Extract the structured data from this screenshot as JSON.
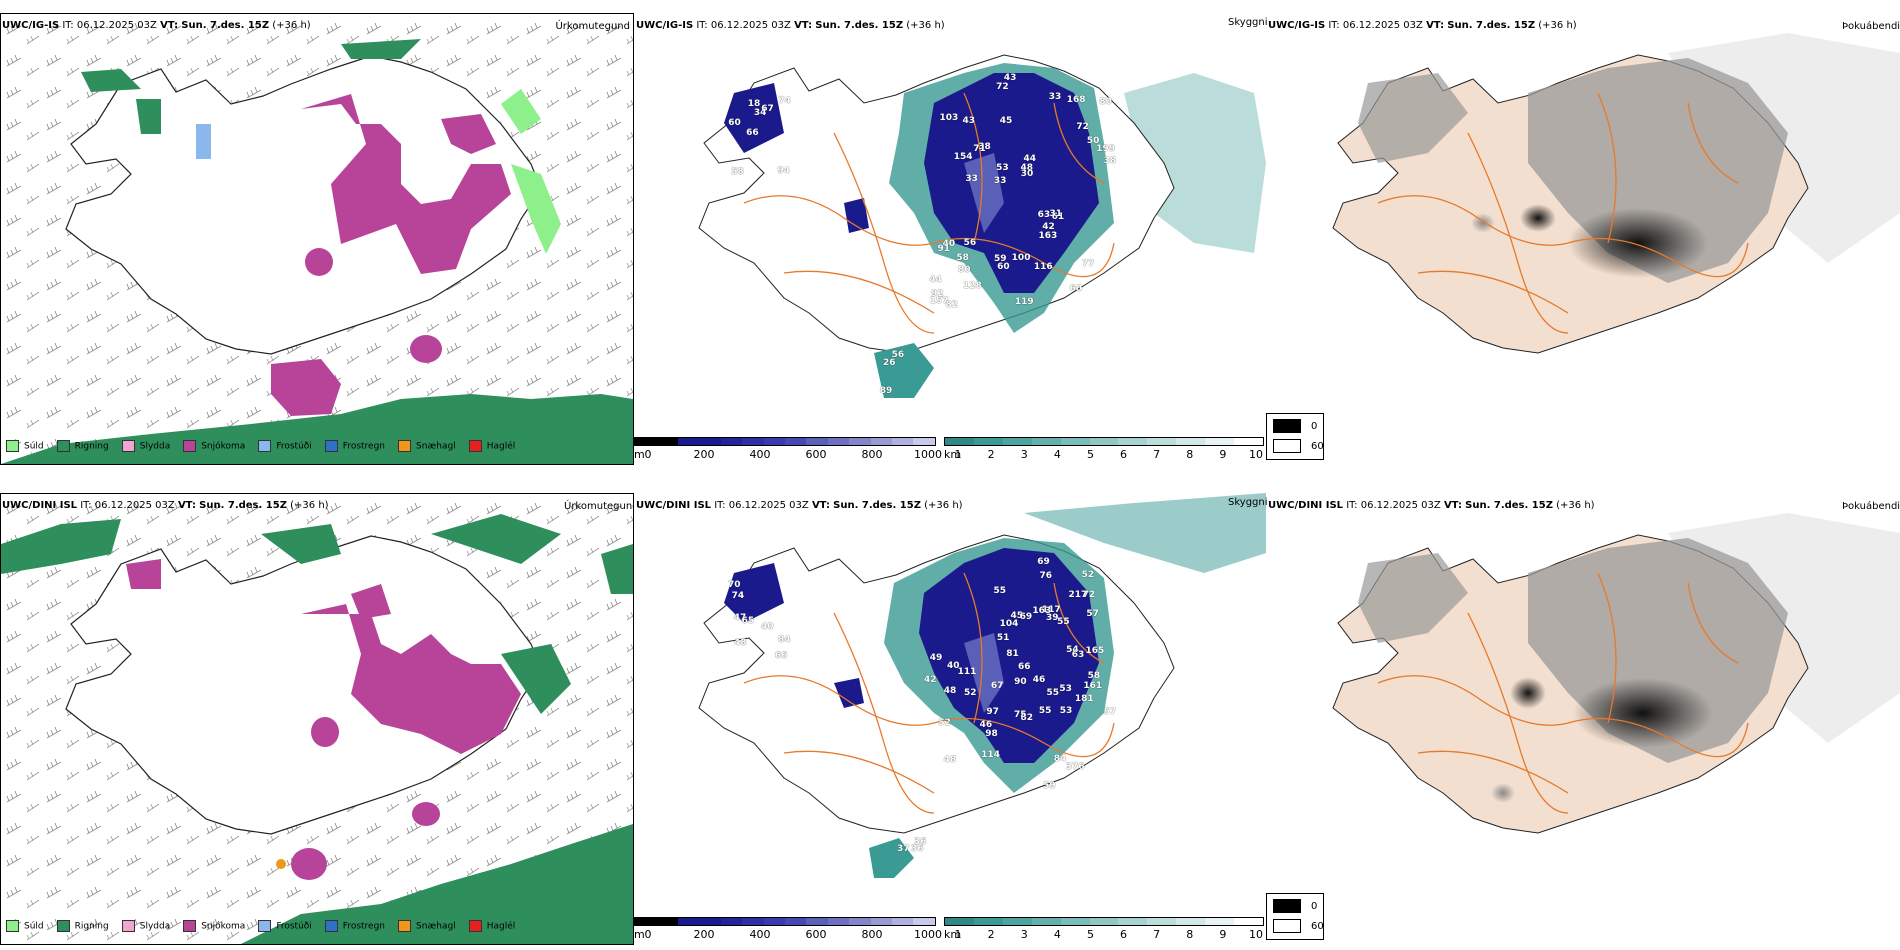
{
  "rows": [
    {
      "model": "UWC/IG-IS",
      "it_label": "IT:",
      "it_value": "06.12.2025 03Z",
      "vt_label": "VT:",
      "vt_value": "Sun. 7.des. 15Z",
      "lead": "(+36 h)",
      "precip_title": "Úrkomutegund",
      "vis_title": "Skyggni",
      "fog_title": "Þokuábendi",
      "vis_labels": [
        "94",
        "60",
        "74",
        "66",
        "67",
        "58",
        "18",
        "34",
        "40",
        "38",
        "44",
        "80",
        "45",
        "44",
        "61",
        "103",
        "72",
        "38",
        "63",
        "50",
        "33",
        "59",
        "53",
        "43",
        "33",
        "56",
        "60",
        "77",
        "31",
        "119",
        "71",
        "154",
        "163",
        "128",
        "199",
        "48",
        "92",
        "60",
        "30",
        "91",
        "72",
        "80",
        "42",
        "116",
        "58",
        "82",
        "157",
        "100",
        "168",
        "43",
        "33",
        "26",
        "89",
        "56"
      ]
    },
    {
      "model": "UWC/DINI ISL",
      "it_label": "IT:",
      "it_value": "06.12.2025 03Z",
      "vt_label": "VT:",
      "vt_value": "Sun. 7.des. 15Z",
      "lead": "(+36 h)",
      "precip_title": "Úrkomutegund",
      "vis_title": "Skyggni",
      "fog_title": "Þokuábendi",
      "vis_labels": [
        "66",
        "47",
        "40",
        "70",
        "84",
        "74",
        "48",
        "65",
        "55",
        "45",
        "39",
        "376",
        "98",
        "55",
        "46",
        "52",
        "53",
        "66",
        "49",
        "48",
        "52",
        "69",
        "54",
        "57",
        "58",
        "40",
        "52",
        "90",
        "81",
        "72",
        "55",
        "48",
        "46",
        "117",
        "104",
        "181",
        "161",
        "84",
        "217",
        "59",
        "97",
        "82",
        "114",
        "69",
        "67",
        "111",
        "57",
        "76",
        "163",
        "75",
        "55",
        "165",
        "53",
        "63",
        "51",
        "42",
        "37",
        "36",
        "36"
      ]
    }
  ],
  "precip_legend": [
    {
      "label": "Súld",
      "color": "#8ef08a"
    },
    {
      "label": "Rigning",
      "color": "#2e8f5c"
    },
    {
      "label": "Slydda",
      "color": "#f0a6d0"
    },
    {
      "label": "Snjókoma",
      "color": "#b8449a"
    },
    {
      "label": "Frostúði",
      "color": "#8ab8ee"
    },
    {
      "label": "Frostregn",
      "color": "#2f70c8"
    },
    {
      "label": "Snæhagl",
      "color": "#f0961c"
    },
    {
      "label": "Haglél",
      "color": "#e82020"
    }
  ],
  "vis_scale": {
    "unit_m": "m",
    "ticks_m": [
      "0",
      "200",
      "400",
      "600",
      "800",
      "1000"
    ],
    "unit_km": "km",
    "ticks_km": [
      "1",
      "2",
      "3",
      "4",
      "5",
      "6",
      "7",
      "8",
      "9",
      "10"
    ]
  },
  "fog_legend": [
    "0",
    "60"
  ],
  "colors": {
    "snow": "#b8449a",
    "rain": "#2e8f5c",
    "drizzle": "#8ef08a",
    "sleet": "#f0a6d0",
    "vis_low": "#1a1a8c",
    "vis_mid": "#5a5fb8",
    "vis_km": "#3a9a94",
    "land_fog": "#f3dfcf",
    "roads": "#e8782a"
  }
}
